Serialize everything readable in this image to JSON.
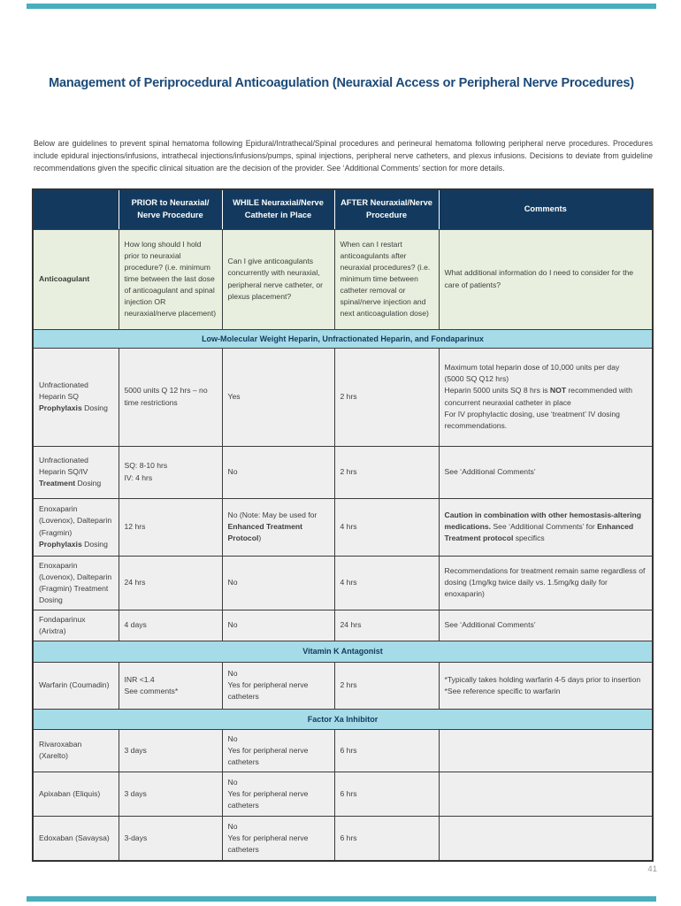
{
  "page": {
    "title": "Management of Periprocedural Anticoagulation (Neuraxial Access or Peripheral Nerve Procedures)",
    "intro": "Below are guidelines to prevent spinal hematoma following Epidural/Intrathecal/Spinal procedures and perineural hematoma following peripheral nerve procedures. Procedures include epidural injections/infusions, intrathecal injections/infusions/pumps, spinal injections, peripheral nerve catheters, and plexus infusions. Decisions to deviate from guideline recommendations given the specific clinical situation are the decision of the provider. See ‘Additional Comments’ section for more details.",
    "page_number": "41",
    "colors": {
      "header_navy": "#133A5E",
      "section_blue": "#A6DBE8",
      "question_green": "#E9EFDE",
      "row_gray": "#EFEFEF",
      "accent_teal": "#49AEBD",
      "title_blue": "#1C4A78"
    }
  },
  "table": {
    "headers": [
      "",
      "PRIOR to Neuraxial/\nNerve Procedure",
      "WHILE Neuraxial/Nerve\nCatheter in Place",
      "AFTER Neuraxial/Nerve\nProcedure",
      "Comments"
    ],
    "question_row": {
      "cells": [
        [
          {
            "t": "Anticoagulant",
            "b": true
          }
        ],
        [
          {
            "t": "How long should I hold prior to neuraxial procedure? (i.e. minimum time between the last dose of anticoagulant and spinal injection OR neuraxial/nerve placement)"
          }
        ],
        [
          {
            "t": "Can I give anticoagulants concurrently with neuraxial, peripheral nerve catheter, or plexus placement?"
          }
        ],
        [
          {
            "t": "When can I restart anticoagulants after neuraxial procedures? (i.e. minimum time between catheter removal or spinal/nerve injection and next anticoagulation dose)"
          }
        ],
        [
          {
            "t": "What additional information do I need to consider for the care of patients?"
          }
        ]
      ]
    },
    "sections": [
      "Low-Molecular Weight Heparin, Unfractionated Heparin, and Fondaparinux",
      "Vitamin K Antagonist",
      "Factor Xa Inhibitor"
    ],
    "rows": [
      {
        "cells": [
          [
            {
              "t": "Unfractionated Heparin SQ\n"
            },
            {
              "t": "Prophylaxis",
              "b": true
            },
            {
              "t": " Dosing"
            }
          ],
          [
            {
              "t": "5000 units Q 12 hrs – no time restrictions"
            }
          ],
          [
            {
              "t": "Yes"
            }
          ],
          [
            {
              "t": "2 hrs"
            }
          ],
          [
            {
              "t": "Maximum total heparin dose of 10,000 units per day\n(5000 SQ Q12 hrs)\nHeparin 5000 units SQ 8 hrs is "
            },
            {
              "t": "NOT",
              "b": true
            },
            {
              "t": " recommended with concurrent neuraxial catheter in place\nFor IV prophylactic dosing, use ‘treatment’ IV dosing recommendations."
            }
          ]
        ]
      },
      {
        "cells": [
          [
            {
              "t": "Unfractionated Heparin SQ/IV\n"
            },
            {
              "t": "Treatment",
              "b": true
            },
            {
              "t": " Dosing"
            }
          ],
          [
            {
              "t": "SQ: 8-10 hrs\nIV: 4 hrs"
            }
          ],
          [
            {
              "t": "No"
            }
          ],
          [
            {
              "t": "2 hrs"
            }
          ],
          [
            {
              "t": "See ‘Additional Comments’"
            }
          ]
        ]
      },
      {
        "cells": [
          [
            {
              "t": "Enoxaparin (Lovenox), Dalteparin (Fragmin)\n"
            },
            {
              "t": "Prophylaxis",
              "b": true
            },
            {
              "t": " Dosing"
            }
          ],
          [
            {
              "t": "12 hrs"
            }
          ],
          [
            {
              "t": "No (Note: May be used for "
            },
            {
              "t": "Enhanced Treatment Protocol",
              "b": true
            },
            {
              "t": ")"
            }
          ],
          [
            {
              "t": "4 hrs"
            }
          ],
          [
            {
              "t": "Caution in combination with other hemostasis-altering medications.",
              "b": true
            },
            {
              "t": " See ‘Additional Comments’ for "
            },
            {
              "t": "Enhanced Treatment protocol",
              "b": true
            },
            {
              "t": " specifics"
            }
          ]
        ]
      },
      {
        "cells": [
          [
            {
              "t": "Enoxaparin (Lovenox), Dalteparin (Fragmin) Treatment Dosing"
            }
          ],
          [
            {
              "t": "24 hrs"
            }
          ],
          [
            {
              "t": "No"
            }
          ],
          [
            {
              "t": "4 hrs"
            }
          ],
          [
            {
              "t": "Recommendations for treatment remain same regardless of dosing (1mg/kg twice daily vs. 1.5mg/kg daily for enoxaparin)"
            }
          ]
        ]
      },
      {
        "cells": [
          [
            {
              "t": "Fondaparinux (Arixtra)"
            }
          ],
          [
            {
              "t": "4 days"
            }
          ],
          [
            {
              "t": "No"
            }
          ],
          [
            {
              "t": "24 hrs"
            }
          ],
          [
            {
              "t": "See ‘Additional Comments’"
            }
          ]
        ]
      },
      {
        "cells": [
          [
            {
              "t": "Warfarin (Coumadin)"
            }
          ],
          [
            {
              "t": "INR <1.4\nSee comments*"
            }
          ],
          [
            {
              "t": "No\nYes for peripheral nerve catheters"
            }
          ],
          [
            {
              "t": "2 hrs"
            }
          ],
          [
            {
              "t": "*Typically takes holding warfarin 4-5 days prior to insertion\n*See reference specific to warfarin"
            }
          ]
        ]
      },
      {
        "cells": [
          [
            {
              "t": "Rivaroxaban (Xarelto)"
            }
          ],
          [
            {
              "t": "3 days"
            }
          ],
          [
            {
              "t": "No\nYes for peripheral nerve catheters"
            }
          ],
          [
            {
              "t": "6 hrs"
            }
          ],
          []
        ]
      },
      {
        "cells": [
          [
            {
              "t": "Apixaban (Eliquis)"
            }
          ],
          [
            {
              "t": "3 days"
            }
          ],
          [
            {
              "t": "No\nYes for peripheral nerve catheters"
            }
          ],
          [
            {
              "t": "6 hrs"
            }
          ],
          []
        ]
      },
      {
        "cells": [
          [
            {
              "t": "Edoxaban (Savaysa)"
            }
          ],
          [
            {
              "t": "3-days"
            }
          ],
          [
            {
              "t": "No\nYes for peripheral nerve catheters"
            }
          ],
          [
            {
              "t": "6 hrs"
            }
          ],
          []
        ]
      }
    ]
  }
}
